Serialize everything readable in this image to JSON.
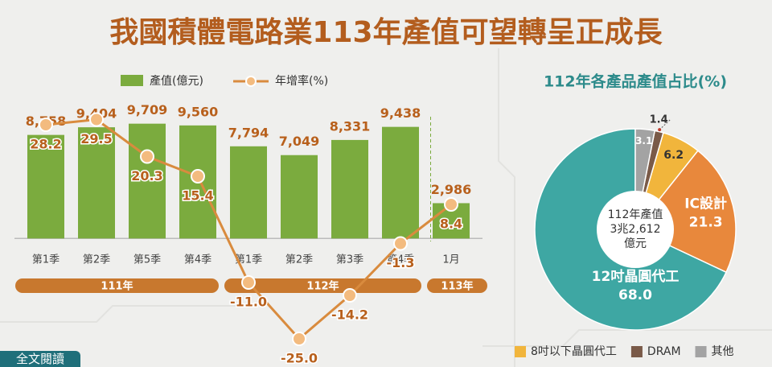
{
  "title": "我國積體電路業113年產值可望轉呈正成長",
  "read_more": "全文閱讀",
  "chart_data": [
    {
      "type": "bar",
      "groups": [
        {
          "label": "111年",
          "categories": [
            "第1季",
            "第2季",
            "第5季",
            "第4季"
          ]
        },
        {
          "label": "112年",
          "categories": [
            "第1季",
            "第2季",
            "第3季",
            "第4季"
          ]
        },
        {
          "label": "113年",
          "categories": [
            "1月"
          ]
        }
      ],
      "series": [
        {
          "name": "產值(億元)",
          "type": "bar",
          "color": "#7bab3e",
          "values": [
            8758,
            9404,
            9709,
            9560,
            7794,
            7049,
            8331,
            9438,
            2986
          ],
          "value_labels": [
            "8,758",
            "9,404",
            "9,709",
            "9,560",
            "7,794",
            "7,049",
            "8,331",
            "9,438",
            "2,986"
          ]
        },
        {
          "name": "年增率(%)",
          "type": "line",
          "axis": "y2",
          "color": "#d98b3e",
          "values": [
            28.2,
            29.5,
            20.3,
            15.4,
            -11.0,
            -25.0,
            -14.2,
            -1.3,
            8.4
          ],
          "value_labels": [
            "28.2",
            "29.5",
            "20.3",
            "15.4",
            "-11.0",
            "-25.0",
            "-14.2",
            "-1.3",
            "8.4"
          ]
        }
      ],
      "ylim": [
        -9100,
        12000
      ],
      "y2lim": [
        -26.8,
        35.2
      ]
    },
    {
      "type": "pie",
      "title": "112年各產品產值占比(%)",
      "categories": [
        "12吋晶圓代工",
        "IC設計",
        "8吋以下晶圓代工",
        "DRAM",
        "其他"
      ],
      "values": [
        68.0,
        21.3,
        6.2,
        1.4,
        3.1
      ],
      "value_labels": [
        "68.0",
        "21.3",
        "6.2",
        "1.4",
        "3.1"
      ],
      "colors": [
        "#3ea7a3",
        "#e8883c",
        "#f1b53c",
        "#7a5a48",
        "#a3a3a3"
      ],
      "center_label": [
        "112年產值",
        "3兆2,612",
        "億元"
      ],
      "legend": "bottom"
    }
  ]
}
